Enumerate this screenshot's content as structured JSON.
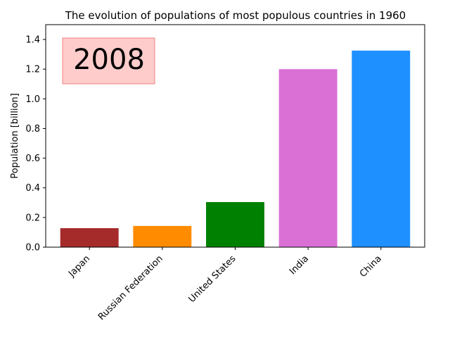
{
  "chart_data": {
    "type": "bar",
    "title": "The evolution of populations of most populous countries in 1960",
    "xlabel": "",
    "ylabel": "Population [billion]",
    "ylim": [
      0,
      1.5
    ],
    "yticks": [
      "0.0",
      "0.2",
      "0.4",
      "0.6",
      "0.8",
      "1.0",
      "1.2",
      "1.4"
    ],
    "categories": [
      "Japan",
      "Russian Federation",
      "United States",
      "India",
      "China"
    ],
    "values": [
      0.128,
      0.143,
      0.304,
      1.2,
      1.325
    ],
    "colors": [
      "#a52a2a",
      "#ff8c00",
      "#008000",
      "#da70d6",
      "#1e90ff"
    ],
    "grid": false,
    "annotation": {
      "text": "2008",
      "box_fill": "#ffcccc",
      "box_edge": "#f08080"
    }
  }
}
